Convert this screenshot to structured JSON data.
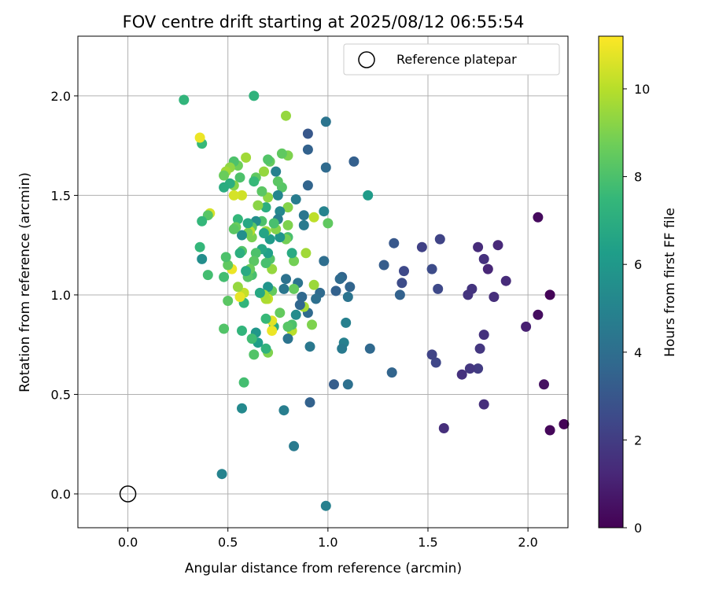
{
  "chart_data": {
    "type": "scatter",
    "title": "FOV centre drift starting at 2025/08/12 06:55:54",
    "xlabel": "Angular distance from reference (arcmin)",
    "ylabel": "Rotation from reference (arcmin)",
    "xlim": [
      -0.25,
      2.2
    ],
    "ylim": [
      -0.17,
      2.3
    ],
    "xticks": [
      0.0,
      0.5,
      1.0,
      1.5,
      2.0
    ],
    "xtick_labels": [
      "0.0",
      "0.5",
      "1.0",
      "1.5",
      "2.0"
    ],
    "yticks": [
      0.0,
      0.5,
      1.0,
      1.5,
      2.0
    ],
    "ytick_labels": [
      "0.0",
      "0.5",
      "1.0",
      "1.5",
      "2.0"
    ],
    "grid": true,
    "legend": {
      "placement": "top-right",
      "entries": [
        "Reference platepar"
      ]
    },
    "reference_point": {
      "name": "Reference platepar",
      "x": 0.0,
      "y": 0.0,
      "marker": "open-circle"
    },
    "colorbar": {
      "label": "Hours from first FF file",
      "colormap": "viridis",
      "range": [
        0,
        11.2
      ],
      "ticks": [
        0,
        2,
        4,
        6,
        8,
        10
      ],
      "tick_labels": [
        "0",
        "2",
        "4",
        "6",
        "8",
        "10"
      ]
    },
    "points": [
      [
        2.11,
        1.0,
        0.1
      ],
      [
        2.05,
        1.39,
        0.3
      ],
      [
        2.05,
        0.9,
        0.4
      ],
      [
        2.08,
        0.55,
        0.5
      ],
      [
        2.11,
        0.32,
        0.2
      ],
      [
        2.18,
        0.35,
        0.1
      ],
      [
        1.99,
        0.84,
        1.0
      ],
      [
        1.89,
        1.07,
        1.4
      ],
      [
        1.85,
        1.25,
        1.3
      ],
      [
        1.83,
        0.99,
        1.5
      ],
      [
        1.8,
        1.13,
        1.2
      ],
      [
        1.78,
        1.18,
        1.6
      ],
      [
        1.78,
        0.8,
        1.6
      ],
      [
        1.78,
        0.45,
        1.5
      ],
      [
        1.75,
        1.24,
        1.4
      ],
      [
        1.76,
        0.73,
        1.8
      ],
      [
        1.75,
        0.63,
        2.0
      ],
      [
        1.72,
        1.03,
        1.7
      ],
      [
        1.71,
        0.63,
        1.8
      ],
      [
        1.7,
        1.0,
        1.7
      ],
      [
        1.67,
        0.6,
        1.6
      ],
      [
        1.58,
        0.33,
        1.5
      ],
      [
        1.56,
        1.28,
        2.3
      ],
      [
        1.55,
        1.03,
        2.5
      ],
      [
        1.54,
        0.66,
        2.4
      ],
      [
        1.52,
        0.7,
        2.3
      ],
      [
        1.52,
        1.13,
        2.6
      ],
      [
        1.47,
        1.24,
        2.2
      ],
      [
        1.38,
        1.12,
        2.5
      ],
      [
        1.37,
        1.06,
        2.6
      ],
      [
        1.36,
        1.0,
        3.5
      ],
      [
        1.33,
        1.26,
        3.1
      ],
      [
        1.32,
        0.61,
        3.6
      ],
      [
        1.28,
        1.15,
        3.3
      ],
      [
        1.21,
        0.73,
        3.8
      ],
      [
        1.2,
        1.5,
        6.1
      ],
      [
        1.13,
        1.67,
        3.4
      ],
      [
        1.11,
        1.04,
        3.6
      ],
      [
        1.1,
        0.55,
        4.1
      ],
      [
        1.1,
        0.99,
        4.3
      ],
      [
        1.09,
        0.86,
        4.9
      ],
      [
        1.08,
        0.76,
        4.9
      ],
      [
        1.07,
        0.73,
        4.6
      ],
      [
        1.07,
        1.09,
        3.6
      ],
      [
        1.06,
        1.08,
        3.9
      ],
      [
        1.04,
        1.02,
        3.5
      ],
      [
        1.03,
        0.55,
        3.3
      ],
      [
        1.0,
        1.36,
        8.4
      ],
      [
        0.99,
        1.87,
        4.3
      ],
      [
        0.99,
        1.64,
        3.9
      ],
      [
        0.99,
        -0.06,
        4.9
      ],
      [
        0.98,
        1.42,
        5.0
      ],
      [
        0.98,
        1.17,
        4.0
      ],
      [
        0.96,
        1.01,
        3.9
      ],
      [
        0.94,
        0.98,
        4.1
      ],
      [
        0.93,
        1.05,
        9.5
      ],
      [
        0.93,
        1.39,
        10.1
      ],
      [
        0.92,
        0.85,
        9.0
      ],
      [
        0.91,
        0.74,
        4.5
      ],
      [
        0.91,
        0.46,
        3.5
      ],
      [
        0.9,
        1.81,
        3.1
      ],
      [
        0.9,
        1.73,
        3.5
      ],
      [
        0.9,
        1.55,
        3.6
      ],
      [
        0.9,
        0.91,
        3.9
      ],
      [
        0.89,
        1.21,
        9.6
      ],
      [
        0.88,
        1.4,
        4.4
      ],
      [
        0.88,
        1.35,
        4.6
      ],
      [
        0.88,
        0.94,
        9.7
      ],
      [
        0.87,
        0.99,
        3.8
      ],
      [
        0.86,
        0.95,
        3.7
      ],
      [
        0.85,
        1.06,
        4.3
      ],
      [
        0.84,
        1.48,
        4.7
      ],
      [
        0.84,
        0.9,
        5.4
      ],
      [
        0.83,
        0.24,
        4.6
      ],
      [
        0.83,
        1.17,
        8.8
      ],
      [
        0.83,
        1.03,
        8.5
      ],
      [
        0.82,
        0.82,
        10.0
      ],
      [
        0.82,
        0.85,
        8.0
      ],
      [
        0.82,
        1.21,
        6.8
      ],
      [
        0.8,
        1.7,
        9.0
      ],
      [
        0.8,
        1.44,
        9.1
      ],
      [
        0.8,
        1.35,
        9.0
      ],
      [
        0.8,
        1.29,
        7.9
      ],
      [
        0.8,
        0.84,
        8.2
      ],
      [
        0.8,
        0.78,
        4.3
      ],
      [
        0.79,
        1.9,
        9.4
      ],
      [
        0.79,
        1.28,
        8.8
      ],
      [
        0.79,
        1.08,
        4.2
      ],
      [
        0.78,
        1.03,
        4.4
      ],
      [
        0.78,
        0.42,
        4.8
      ],
      [
        0.77,
        1.71,
        8.4
      ],
      [
        0.77,
        1.54,
        8.2
      ],
      [
        0.76,
        1.42,
        5.2
      ],
      [
        0.76,
        1.29,
        5.8
      ],
      [
        0.76,
        0.91,
        8.5
      ],
      [
        0.75,
        1.57,
        8.3
      ],
      [
        0.75,
        1.5,
        5.1
      ],
      [
        0.75,
        1.38,
        4.8
      ],
      [
        0.74,
        1.62,
        4.9
      ],
      [
        0.74,
        1.33,
        9.1
      ],
      [
        0.73,
        1.36,
        7.9
      ],
      [
        0.73,
        0.84,
        6.8
      ],
      [
        0.72,
        1.13,
        9.4
      ],
      [
        0.72,
        1.02,
        8.5
      ],
      [
        0.72,
        0.82,
        10.9
      ],
      [
        0.72,
        0.87,
        10.7
      ],
      [
        0.71,
        1.67,
        8.5
      ],
      [
        0.71,
        1.28,
        6.1
      ],
      [
        0.71,
        1.18,
        8.1
      ],
      [
        0.7,
        1.68,
        8.1
      ],
      [
        0.7,
        1.49,
        9.3
      ],
      [
        0.7,
        1.21,
        6.3
      ],
      [
        0.7,
        1.04,
        5.8
      ],
      [
        0.7,
        0.98,
        10.3
      ],
      [
        0.7,
        0.71,
        9.0
      ],
      [
        0.69,
        1.44,
        7.0
      ],
      [
        0.69,
        1.32,
        9.4
      ],
      [
        0.69,
        1.16,
        7.9
      ],
      [
        0.69,
        0.98,
        9.8
      ],
      [
        0.69,
        0.88,
        7.5
      ],
      [
        0.69,
        0.73,
        7.2
      ],
      [
        0.68,
        1.62,
        9.4
      ],
      [
        0.68,
        1.31,
        6.5
      ],
      [
        0.68,
        1.0,
        9.7
      ],
      [
        0.67,
        1.52,
        8.3
      ],
      [
        0.67,
        1.37,
        8.0
      ],
      [
        0.67,
        1.23,
        6.6
      ],
      [
        0.66,
        1.01,
        6.7
      ],
      [
        0.65,
        1.45,
        9.2
      ],
      [
        0.65,
        0.76,
        6.2
      ],
      [
        0.64,
        1.59,
        8.4
      ],
      [
        0.64,
        1.37,
        5.5
      ],
      [
        0.64,
        1.21,
        8.0
      ],
      [
        0.64,
        0.81,
        5.9
      ],
      [
        0.63,
        1.57,
        7.5
      ],
      [
        0.63,
        1.17,
        8.3
      ],
      [
        0.63,
        0.7,
        8.1
      ],
      [
        0.63,
        2.0,
        7.2
      ],
      [
        0.62,
        1.34,
        8.3
      ],
      [
        0.62,
        1.29,
        8.9
      ],
      [
        0.62,
        1.1,
        7.9
      ],
      [
        0.62,
        0.78,
        7.7
      ],
      [
        0.61,
        1.32,
        10.0
      ],
      [
        0.61,
        1.13,
        8.6
      ],
      [
        0.6,
        1.36,
        6.7
      ],
      [
        0.6,
        1.31,
        8.9
      ],
      [
        0.6,
        1.09,
        8.2
      ],
      [
        0.59,
        1.69,
        9.6
      ],
      [
        0.59,
        1.12,
        6.8
      ],
      [
        0.58,
        1.01,
        10.2
      ],
      [
        0.58,
        0.96,
        7.3
      ],
      [
        0.58,
        0.56,
        7.8
      ],
      [
        0.57,
        1.5,
        10.4
      ],
      [
        0.57,
        1.3,
        5.5
      ],
      [
        0.57,
        1.22,
        8.1
      ],
      [
        0.57,
        0.82,
        7.3
      ],
      [
        0.57,
        0.43,
        5.3
      ],
      [
        0.56,
        1.59,
        8.0
      ],
      [
        0.56,
        1.21,
        7.0
      ],
      [
        0.56,
        0.99,
        10.8
      ],
      [
        0.55,
        1.65,
        8.7
      ],
      [
        0.55,
        1.38,
        7.4
      ],
      [
        0.55,
        1.04,
        9.4
      ],
      [
        0.54,
        1.34,
        8.6
      ],
      [
        0.53,
        1.67,
        8.0
      ],
      [
        0.53,
        1.55,
        9.1
      ],
      [
        0.53,
        1.5,
        10.5
      ],
      [
        0.53,
        1.33,
        8.3
      ],
      [
        0.52,
        1.13,
        10.9
      ],
      [
        0.51,
        1.64,
        9.3
      ],
      [
        0.51,
        1.56,
        7.0
      ],
      [
        0.5,
        1.15,
        8.4
      ],
      [
        0.5,
        0.97,
        8.3
      ],
      [
        0.49,
        1.19,
        8.0
      ],
      [
        0.49,
        1.62,
        9.6
      ],
      [
        0.48,
        1.6,
        8.6
      ],
      [
        0.48,
        1.54,
        6.9
      ],
      [
        0.48,
        1.09,
        7.8
      ],
      [
        0.48,
        0.83,
        8.1
      ],
      [
        0.47,
        0.1,
        5.0
      ],
      [
        0.41,
        1.41,
        10.5
      ],
      [
        0.4,
        1.4,
        8.2
      ],
      [
        0.4,
        1.1,
        7.8
      ],
      [
        0.37,
        1.76,
        7.5
      ],
      [
        0.36,
        1.79,
        10.9
      ],
      [
        0.37,
        1.37,
        7.4
      ],
      [
        0.37,
        1.18,
        5.5
      ],
      [
        0.36,
        1.24,
        7.4
      ],
      [
        0.28,
        1.98,
        7.3
      ]
    ]
  }
}
